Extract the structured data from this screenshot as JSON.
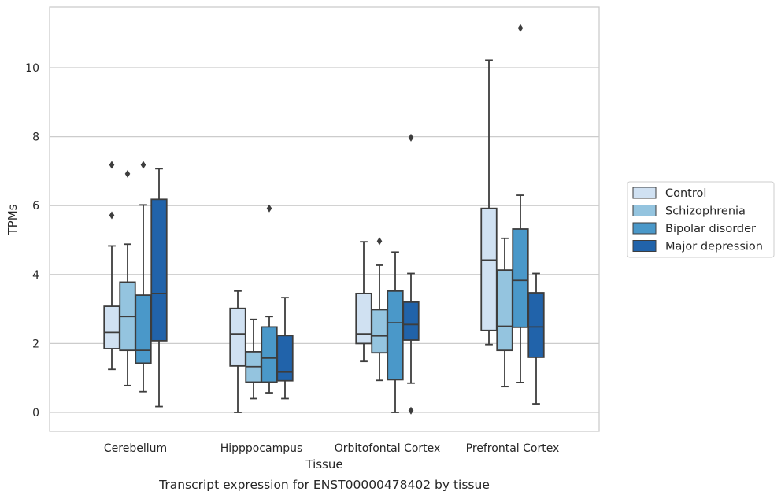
{
  "chart_data": {
    "type": "box",
    "xlabel": "Tissue",
    "ylabel": "TPMs",
    "caption": "Transcript expression for ENST00000478402 by tissue",
    "ylim": [
      -0.55,
      11.8
    ],
    "yticks": [
      "0",
      "2",
      "4",
      "6",
      "8",
      "10"
    ],
    "grid": "horizontal",
    "legend_position": "right",
    "categories": [
      "Cerebellum",
      "Hipppocampus",
      "Orbitofontal Cortex",
      "Prefrontal Cortex"
    ],
    "series": [
      {
        "name": "Control",
        "color": "#d0e1f2",
        "boxes": [
          {
            "whislo": 1.25,
            "q1": 1.85,
            "med": 2.32,
            "q3": 3.08,
            "whishi": 4.83,
            "fliers": [
              5.72,
              7.18
            ]
          },
          {
            "whislo": 0.0,
            "q1": 1.35,
            "med": 2.28,
            "q3": 3.02,
            "whishi": 3.52,
            "fliers": []
          },
          {
            "whislo": 1.48,
            "q1": 2.0,
            "med": 2.28,
            "q3": 3.45,
            "whishi": 4.95,
            "fliers": []
          },
          {
            "whislo": 1.97,
            "q1": 2.38,
            "med": 4.42,
            "q3": 5.92,
            "whishi": 10.22,
            "fliers": []
          }
        ]
      },
      {
        "name": "Schizophrenia",
        "color": "#94c4df",
        "boxes": [
          {
            "whislo": 0.78,
            "q1": 1.8,
            "med": 2.78,
            "q3": 3.78,
            "whishi": 4.88,
            "fliers": [
              6.92
            ]
          },
          {
            "whislo": 0.4,
            "q1": 0.88,
            "med": 1.33,
            "q3": 1.76,
            "whishi": 2.7,
            "fliers": []
          },
          {
            "whislo": 0.93,
            "q1": 1.73,
            "med": 2.22,
            "q3": 2.98,
            "whishi": 4.27,
            "fliers": [
              4.97
            ]
          },
          {
            "whislo": 0.75,
            "q1": 1.8,
            "med": 2.5,
            "q3": 4.13,
            "whishi": 5.05,
            "fliers": []
          }
        ]
      },
      {
        "name": "Bipolar disorder",
        "color": "#4a98c9",
        "boxes": [
          {
            "whislo": 0.6,
            "q1": 1.43,
            "med": 1.8,
            "q3": 3.4,
            "whishi": 6.02,
            "fliers": [
              7.18
            ]
          },
          {
            "whislo": 0.57,
            "q1": 0.88,
            "med": 1.58,
            "q3": 2.48,
            "whishi": 2.78,
            "fliers": [
              5.92
            ]
          },
          {
            "whislo": 0.0,
            "q1": 0.95,
            "med": 2.6,
            "q3": 3.52,
            "whishi": 4.65,
            "fliers": []
          },
          {
            "whislo": 0.87,
            "q1": 2.47,
            "med": 3.83,
            "q3": 5.32,
            "whishi": 6.3,
            "fliers": [
              11.15
            ]
          }
        ]
      },
      {
        "name": "Major depression",
        "color": "#2163aa",
        "boxes": [
          {
            "whislo": 0.17,
            "q1": 2.08,
            "med": 3.45,
            "q3": 6.18,
            "whishi": 7.07,
            "fliers": []
          },
          {
            "whislo": 0.4,
            "q1": 0.92,
            "med": 1.17,
            "q3": 2.23,
            "whishi": 3.33,
            "fliers": []
          },
          {
            "whislo": 0.85,
            "q1": 2.1,
            "med": 2.55,
            "q3": 3.2,
            "whishi": 4.03,
            "fliers": [
              0.05,
              7.97
            ]
          },
          {
            "whislo": 0.25,
            "q1": 1.6,
            "med": 2.48,
            "q3": 3.47,
            "whishi": 4.03,
            "fliers": []
          }
        ]
      }
    ]
  }
}
